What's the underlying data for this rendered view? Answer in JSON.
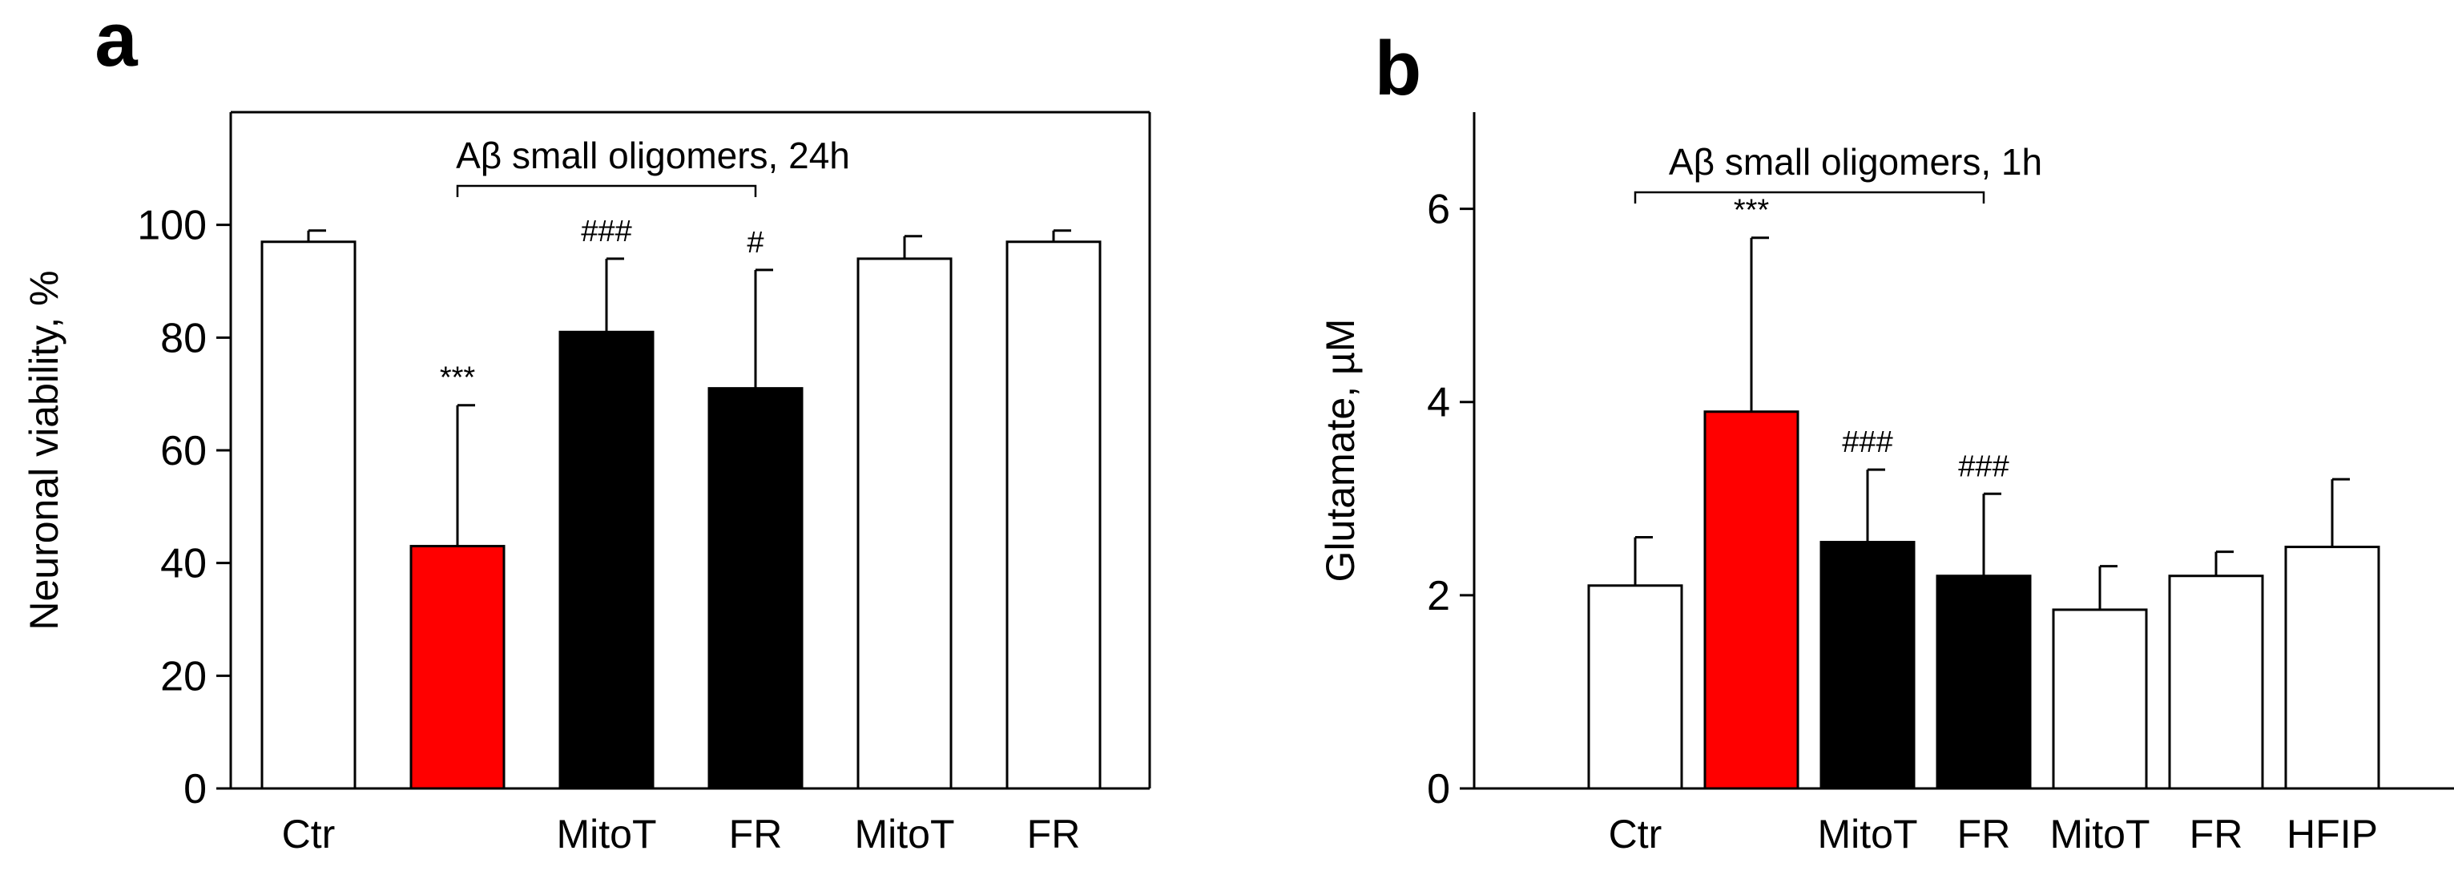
{
  "chart_data": [
    {
      "panel": "a",
      "type": "bar",
      "ylabel": "Neuronal viability, %",
      "ylim": [
        0,
        120
      ],
      "yticks": [
        0,
        20,
        40,
        60,
        80,
        100
      ],
      "categories": [
        "Ctr",
        "",
        "MitoT",
        "FR",
        "MitoT",
        "FR"
      ],
      "values": [
        97,
        43,
        81,
        71,
        94,
        97
      ],
      "errors": [
        2,
        25,
        13,
        21,
        4,
        2
      ],
      "bar_colors": [
        "#ffffff",
        "#ff0000",
        "#000000",
        "#000000",
        "#ffffff",
        "#ffffff"
      ],
      "annotations": [
        "",
        "***",
        "###",
        "#",
        "",
        ""
      ],
      "bracket": {
        "label": "Aβ small oligomers, 24h",
        "from": 1,
        "to": 3
      }
    },
    {
      "panel": "b",
      "type": "bar",
      "ylabel": "Glutamate, µM",
      "ylim": [
        0,
        7
      ],
      "yticks": [
        0,
        2,
        4,
        6
      ],
      "categories": [
        "Ctr",
        "",
        "MitoT",
        "FR",
        "MitoT",
        "FR",
        "HFIP"
      ],
      "values": [
        2.1,
        3.9,
        2.55,
        2.2,
        1.85,
        2.2,
        2.5
      ],
      "errors": [
        0.5,
        1.8,
        0.75,
        0.85,
        0.45,
        0.25,
        0.7
      ],
      "bar_colors": [
        "#ffffff",
        "#ff0000",
        "#000000",
        "#000000",
        "#ffffff",
        "#ffffff",
        "#ffffff"
      ],
      "annotations": [
        "",
        "***",
        "###",
        "###",
        "",
        "",
        ""
      ],
      "bracket": {
        "label": "Aβ small oligomers, 1h",
        "from": 0,
        "to": 3
      }
    }
  ]
}
